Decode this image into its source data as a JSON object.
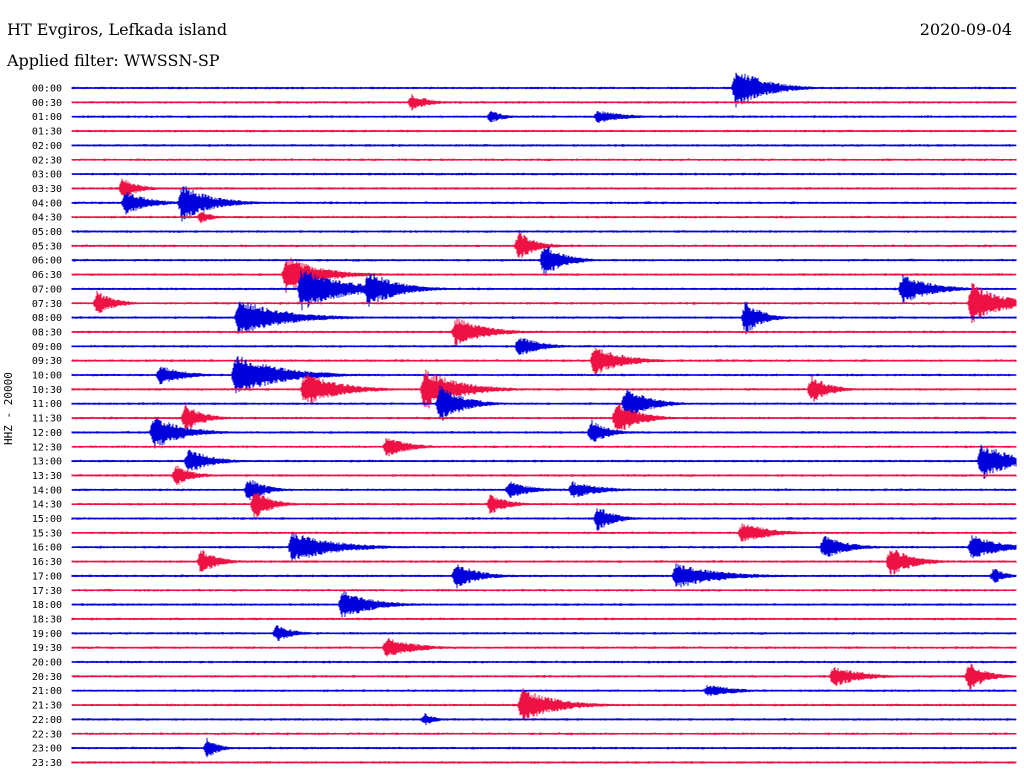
{
  "header": {
    "station": "HT Evgiros, Lefkada island",
    "filter": "Applied filter: WWSSN-SP",
    "date": "2020-09-04"
  },
  "channel_label": "HHZ - 20000",
  "colors": {
    "odd_trace": "#0000dd",
    "even_trace": "#ee1144",
    "text": "#000000"
  },
  "chart_data": {
    "type": "line",
    "title": "HT Evgiros, Lefkada island",
    "subtitle": "Applied filter: WWSSN-SP",
    "ylabel": "HHZ - 20000",
    "grid": false,
    "row_labels": [
      "00:00",
      "00:30",
      "01:00",
      "01:30",
      "02:00",
      "02:30",
      "03:00",
      "03:30",
      "04:00",
      "04:30",
      "05:00",
      "05:30",
      "06:00",
      "06:30",
      "07:00",
      "07:30",
      "08:00",
      "08:30",
      "09:00",
      "09:30",
      "10:00",
      "10:30",
      "11:00",
      "11:30",
      "12:00",
      "12:30",
      "13:00",
      "13:30",
      "14:00",
      "14:30",
      "15:00",
      "15:30",
      "16:00",
      "16:30",
      "17:00",
      "17:30",
      "18:00",
      "18:30",
      "19:00",
      "19:30",
      "20:00",
      "20:30",
      "21:00",
      "21:30",
      "22:00",
      "22:30",
      "23:00",
      "23:30"
    ],
    "row_minutes": 30,
    "events": [
      {
        "row": 0,
        "minute": 21.1,
        "amp": 1.0,
        "dur": 1.0
      },
      {
        "row": 1,
        "minute": 10.8,
        "amp": 0.4,
        "dur": 0.6
      },
      {
        "row": 2,
        "minute": 13.3,
        "amp": 0.3,
        "dur": 0.5
      },
      {
        "row": 2,
        "minute": 16.7,
        "amp": 0.3,
        "dur": 1.0
      },
      {
        "row": 7,
        "minute": 1.6,
        "amp": 0.5,
        "dur": 0.6
      },
      {
        "row": 8,
        "minute": 1.7,
        "amp": 0.6,
        "dur": 0.8
      },
      {
        "row": 8,
        "minute": 3.5,
        "amp": 0.9,
        "dur": 1.0
      },
      {
        "row": 9,
        "minute": 4.1,
        "amp": 0.3,
        "dur": 0.4
      },
      {
        "row": 11,
        "minute": 14.2,
        "amp": 0.7,
        "dur": 0.6
      },
      {
        "row": 12,
        "minute": 15.0,
        "amp": 0.8,
        "dur": 0.7
      },
      {
        "row": 13,
        "minute": 6.8,
        "amp": 0.9,
        "dur": 1.2
      },
      {
        "row": 14,
        "minute": 7.3,
        "amp": 1.0,
        "dur": 1.5
      },
      {
        "row": 14,
        "minute": 9.4,
        "amp": 0.9,
        "dur": 1.0
      },
      {
        "row": 14,
        "minute": 26.4,
        "amp": 0.7,
        "dur": 1.0
      },
      {
        "row": 15,
        "minute": 0.8,
        "amp": 0.6,
        "dur": 0.6
      },
      {
        "row": 15,
        "minute": 28.6,
        "amp": 1.0,
        "dur": 1.0
      },
      {
        "row": 16,
        "minute": 5.3,
        "amp": 0.9,
        "dur": 1.5
      },
      {
        "row": 16,
        "minute": 21.4,
        "amp": 0.8,
        "dur": 0.6
      },
      {
        "row": 17,
        "minute": 12.2,
        "amp": 0.7,
        "dur": 1.0
      },
      {
        "row": 18,
        "minute": 14.2,
        "amp": 0.5,
        "dur": 0.8
      },
      {
        "row": 19,
        "minute": 16.6,
        "amp": 0.7,
        "dur": 1.0
      },
      {
        "row": 20,
        "minute": 5.2,
        "amp": 1.0,
        "dur": 1.5
      },
      {
        "row": 20,
        "minute": 2.8,
        "amp": 0.5,
        "dur": 0.8
      },
      {
        "row": 21,
        "minute": 7.4,
        "amp": 0.8,
        "dur": 1.2
      },
      {
        "row": 21,
        "minute": 11.2,
        "amp": 1.0,
        "dur": 1.2
      },
      {
        "row": 21,
        "minute": 23.5,
        "amp": 0.7,
        "dur": 0.6
      },
      {
        "row": 22,
        "minute": 11.7,
        "amp": 0.9,
        "dur": 0.8
      },
      {
        "row": 22,
        "minute": 17.6,
        "amp": 0.8,
        "dur": 0.8
      },
      {
        "row": 23,
        "minute": 3.6,
        "amp": 0.7,
        "dur": 0.6
      },
      {
        "row": 23,
        "minute": 17.3,
        "amp": 0.8,
        "dur": 0.8
      },
      {
        "row": 24,
        "minute": 2.6,
        "amp": 0.8,
        "dur": 1.0
      },
      {
        "row": 24,
        "minute": 16.5,
        "amp": 0.6,
        "dur": 0.6
      },
      {
        "row": 25,
        "minute": 10.0,
        "amp": 0.5,
        "dur": 0.8
      },
      {
        "row": 26,
        "minute": 28.9,
        "amp": 0.9,
        "dur": 1.0
      },
      {
        "row": 26,
        "minute": 3.7,
        "amp": 0.6,
        "dur": 0.8
      },
      {
        "row": 27,
        "minute": 3.3,
        "amp": 0.5,
        "dur": 0.6
      },
      {
        "row": 28,
        "minute": 5.6,
        "amp": 0.6,
        "dur": 0.6
      },
      {
        "row": 28,
        "minute": 13.9,
        "amp": 0.4,
        "dur": 0.8
      },
      {
        "row": 28,
        "minute": 15.9,
        "amp": 0.4,
        "dur": 1.0
      },
      {
        "row": 29,
        "minute": 5.8,
        "amp": 0.7,
        "dur": 0.6
      },
      {
        "row": 29,
        "minute": 13.3,
        "amp": 0.5,
        "dur": 0.6
      },
      {
        "row": 30,
        "minute": 16.7,
        "amp": 0.6,
        "dur": 0.6
      },
      {
        "row": 31,
        "minute": 21.3,
        "amp": 0.5,
        "dur": 1.0
      },
      {
        "row": 32,
        "minute": 7.0,
        "amp": 0.7,
        "dur": 1.5
      },
      {
        "row": 32,
        "minute": 23.9,
        "amp": 0.6,
        "dur": 0.8
      },
      {
        "row": 32,
        "minute": 28.6,
        "amp": 0.6,
        "dur": 1.0
      },
      {
        "row": 33,
        "minute": 4.1,
        "amp": 0.6,
        "dur": 0.6
      },
      {
        "row": 33,
        "minute": 26.0,
        "amp": 0.7,
        "dur": 0.8
      },
      {
        "row": 34,
        "minute": 12.2,
        "amp": 0.6,
        "dur": 0.8
      },
      {
        "row": 34,
        "minute": 19.2,
        "amp": 0.6,
        "dur": 1.5
      },
      {
        "row": 34,
        "minute": 29.3,
        "amp": 0.4,
        "dur": 0.4
      },
      {
        "row": 36,
        "minute": 8.6,
        "amp": 0.7,
        "dur": 1.0
      },
      {
        "row": 38,
        "minute": 6.5,
        "amp": 0.4,
        "dur": 0.6
      },
      {
        "row": 39,
        "minute": 10.0,
        "amp": 0.5,
        "dur": 1.0
      },
      {
        "row": 41,
        "minute": 24.2,
        "amp": 0.5,
        "dur": 1.0
      },
      {
        "row": 41,
        "minute": 28.5,
        "amp": 0.7,
        "dur": 0.6
      },
      {
        "row": 42,
        "minute": 20.2,
        "amp": 0.3,
        "dur": 1.0
      },
      {
        "row": 43,
        "minute": 14.3,
        "amp": 0.8,
        "dur": 1.2
      },
      {
        "row": 44,
        "minute": 11.2,
        "amp": 0.3,
        "dur": 0.4
      },
      {
        "row": 46,
        "minute": 4.3,
        "amp": 0.5,
        "dur": 0.4
      }
    ]
  }
}
